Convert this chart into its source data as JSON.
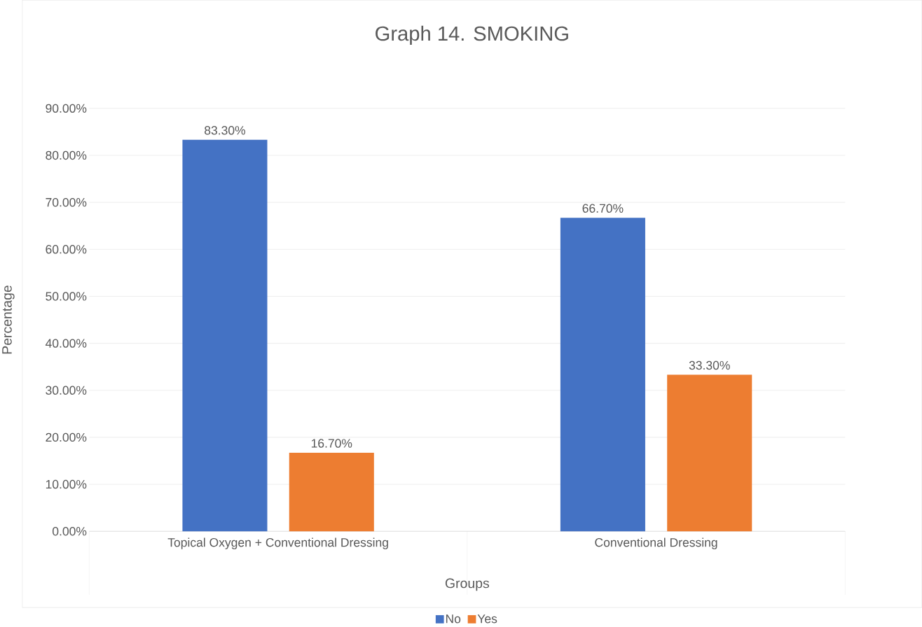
{
  "chart_data": {
    "type": "bar",
    "title": "Graph 14. SMOKING",
    "xlabel": "Groups",
    "ylabel": "Percentage",
    "categories": [
      "Topical Oxygen + Conventional Dressing",
      "Conventional Dressing"
    ],
    "series": [
      {
        "name": "No",
        "color": "#4472c4",
        "values": [
          83.3,
          66.7
        ],
        "value_labels": [
          "83.30%",
          "66.70%"
        ]
      },
      {
        "name": "Yes",
        "color": "#ed7d31",
        "values": [
          16.7,
          33.3
        ],
        "value_labels": [
          "16.70%",
          "33.30%"
        ]
      }
    ],
    "ylim": [
      0,
      90
    ],
    "yticks": [
      {
        "value": 0,
        "label": "0.00%"
      },
      {
        "value": 10,
        "label": "10.00%"
      },
      {
        "value": 20,
        "label": "20.00%"
      },
      {
        "value": 30,
        "label": "30.00%"
      },
      {
        "value": 40,
        "label": "40.00%"
      },
      {
        "value": 50,
        "label": "50.00%"
      },
      {
        "value": 60,
        "label": "60.00%"
      },
      {
        "value": 70,
        "label": "70.00%"
      },
      {
        "value": 80,
        "label": "80.00%"
      },
      {
        "value": 90,
        "label": "90.00%"
      }
    ],
    "grid": "y",
    "legend": "bottom"
  }
}
